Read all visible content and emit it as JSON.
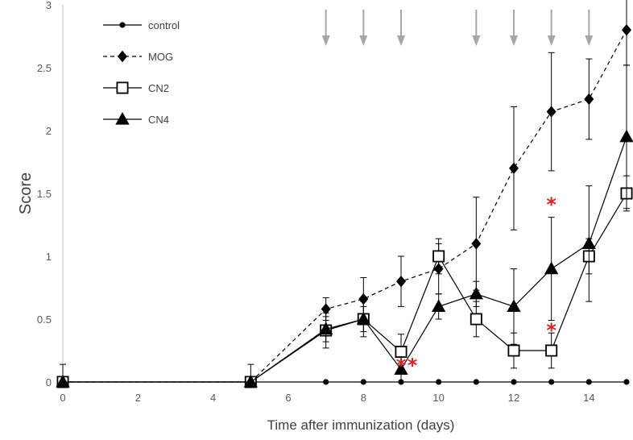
{
  "chart_data": {
    "type": "line",
    "title": "",
    "xlabel": "Time after immunization (days)",
    "ylabel": "Score",
    "xlim": [
      0,
      15
    ],
    "ylim": [
      0,
      3
    ],
    "xticks": [
      0,
      2,
      4,
      6,
      8,
      10,
      12,
      14
    ],
    "xtick_labels": [
      "0",
      "2",
      "4",
      "6",
      "8",
      "10",
      "12",
      "14"
    ],
    "yticks": [
      0,
      0.5,
      1,
      1.5,
      2,
      2.5,
      3
    ],
    "ytick_labels": [
      "0",
      "0.5",
      "1",
      "1.5",
      "2",
      "2.5",
      "3"
    ],
    "grid": false,
    "legend_position": "top-left",
    "series": [
      {
        "name": "control",
        "marker": "circle",
        "line": "solid",
        "x": [
          0,
          5,
          7,
          8,
          9,
          10,
          11,
          12,
          13,
          14,
          15
        ],
        "y": [
          0,
          0,
          0,
          0,
          0,
          0,
          0,
          0,
          0,
          0,
          0
        ],
        "err": [
          0.14,
          0.14,
          0,
          0,
          0,
          0,
          0,
          0,
          0,
          0,
          0
        ]
      },
      {
        "name": "MOG",
        "marker": "diamond",
        "line": "dashed",
        "x": [
          0,
          5,
          7,
          8,
          9,
          10,
          11,
          12,
          13,
          14,
          15
        ],
        "y": [
          0,
          0,
          0.58,
          0.66,
          0.8,
          0.9,
          1.1,
          1.7,
          2.15,
          2.25,
          2.8
        ],
        "err": [
          0,
          0,
          0.09,
          0.17,
          0.2,
          0.2,
          0.37,
          0.49,
          0.47,
          0.32,
          0.28
        ]
      },
      {
        "name": "CN2",
        "marker": "square-open",
        "line": "solid",
        "x": [
          0,
          5,
          7,
          8,
          9,
          10,
          11,
          12,
          13,
          14,
          15
        ],
        "y": [
          0,
          0,
          0.41,
          0.5,
          0.24,
          1.0,
          0.5,
          0.25,
          0.25,
          1.0,
          1.5
        ],
        "err": [
          0,
          0,
          0.14,
          0.14,
          0.14,
          0.14,
          0.14,
          0.14,
          0.14,
          0.14,
          0.14
        ]
      },
      {
        "name": "CN4",
        "marker": "triangle",
        "line": "solid",
        "x": [
          0,
          5,
          7,
          8,
          9,
          10,
          11,
          12,
          13,
          14,
          15
        ],
        "y": [
          0,
          0,
          0.42,
          0.5,
          0.1,
          0.6,
          0.7,
          0.6,
          0.9,
          1.1,
          1.95
        ],
        "err": [
          0,
          0,
          0.1,
          0.1,
          0.1,
          0.1,
          0.1,
          0.3,
          0.41,
          0.46,
          0.57
        ]
      }
    ],
    "arrows_days": [
      7,
      8,
      9,
      11,
      12,
      13,
      14
    ],
    "annotations": [
      {
        "text": "*",
        "x": 9,
        "y": 0.17
      },
      {
        "text": "*",
        "x": 9.3,
        "y": 0.17
      },
      {
        "text": "*",
        "x": 13,
        "y": 1.45
      },
      {
        "text": "*",
        "x": 13,
        "y": 0.45
      }
    ]
  }
}
